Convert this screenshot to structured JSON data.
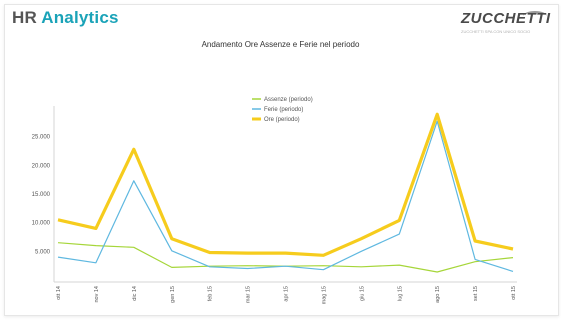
{
  "app": {
    "title_part1": "HR ",
    "title_part2": "Analytics"
  },
  "logo": {
    "word": "ZUCCHETTI",
    "tagline": "ZUCCHETTI SPA CON UNICO SOCIO"
  },
  "chart_data": {
    "type": "line",
    "title": "Andamento Ore Assenze e Ferie nel periodo",
    "xlabel": "",
    "ylabel": "",
    "categories": [
      "ott 14",
      "nov 14",
      "dic 14",
      "gen 15",
      "feb 15",
      "mar 15",
      "apr 15",
      "mag 15",
      "giu 15",
      "lug 15",
      "ago 15",
      "set 15",
      "ott 15"
    ],
    "yticks": [
      "5.000",
      "10.000",
      "15.000",
      "20.000",
      "25.000"
    ],
    "ylim": [
      0,
      30000
    ],
    "grid": false,
    "legend_position": "top-center",
    "series": [
      {
        "name": "Assenze (periodo)",
        "color": "#a6d63a",
        "values": [
          6500,
          6000,
          5700,
          2200,
          2400,
          2500,
          2400,
          2500,
          2300,
          2600,
          1400,
          3200,
          3900
        ]
      },
      {
        "name": "Ferie (periodo)",
        "color": "#5fb8e0",
        "values": [
          4000,
          3000,
          17300,
          5100,
          2300,
          2000,
          2400,
          1800,
          5000,
          8000,
          27700,
          3600,
          1500
        ]
      },
      {
        "name": "Ore (periodo)",
        "color": "#f6cc1d",
        "values": [
          10500,
          9000,
          22800,
          7200,
          4800,
          4700,
          4700,
          4300,
          7200,
          10400,
          28900,
          6800,
          5400
        ]
      }
    ]
  }
}
